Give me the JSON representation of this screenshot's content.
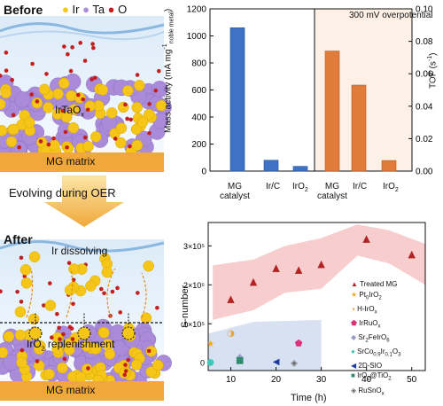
{
  "schematic": {
    "before_label": "Before",
    "after_label": "After",
    "legend": [
      {
        "symbol": "●",
        "label": "Ir",
        "color": "#f5c518"
      },
      {
        "symbol": "●",
        "label": "Ta",
        "color": "#a98bd9"
      },
      {
        "symbol": "●",
        "label": "O",
        "color": "#c41e1e"
      }
    ],
    "iritao_label": "IrTaOx",
    "mg_matrix_top": "MG matrix",
    "evolving_label": "Evolving during OER",
    "ir_dissolving_label": "Ir dissolving",
    "iro2_replenishment_label": "IrO2 replenishment",
    "mg_matrix_bottom": "MG matrix"
  },
  "bar_chart": {
    "annotation": "300 mV overpotential",
    "ylabel_left": "Mass activity (mA mg-1 noble metal)",
    "ylabel_right": "TOF (s-1)",
    "left_ticks": [
      "0",
      "200",
      "400",
      "600",
      "800",
      "1000",
      "1200"
    ],
    "right_ticks": [
      "0.00",
      "0.02",
      "0.04",
      "0.06",
      "0.08",
      "0.10"
    ],
    "xlabels_left": [
      "MG catalyst",
      "Ir/C",
      "IrO2"
    ],
    "xlabels_right": [
      "MG catalyst",
      "Ir/C",
      "IrO2"
    ]
  },
  "scatter_chart": {
    "ylabel": "S-number",
    "xlabel": "Time (h)",
    "x_ticks": [
      "10",
      "20",
      "30",
      "40",
      "50"
    ],
    "y_ticks": [
      "0",
      "1×10⁵",
      "2×10⁵",
      "3×10⁵"
    ],
    "legend": [
      {
        "label": "Treated MG",
        "symbol": "▲",
        "color": "#b22222"
      },
      {
        "label": "Pt0IrO2",
        "symbol": "★",
        "color": "#f2a81d"
      },
      {
        "label": "H-IrOx",
        "symbol": "◑",
        "color": "#e8a33c"
      },
      {
        "label": "IrRuOx",
        "symbol": "⬟",
        "color": "#e0307a"
      },
      {
        "label": "Sr2FeIrO6",
        "symbol": "◆",
        "color": "#9a9cc9"
      },
      {
        "label": "SrCo0.9Ir0.1O3",
        "symbol": "●",
        "color": "#3dc7b8"
      },
      {
        "label": "2D-SIO",
        "symbol": "◀",
        "color": "#1f3c9e"
      },
      {
        "label": "IrO2@TiO2",
        "symbol": "■",
        "color": "#2f8a6e"
      },
      {
        "label": "RuSnOx",
        "symbol": "◈",
        "color": "#666666"
      }
    ]
  },
  "chart_data": [
    {
      "type": "bar",
      "categories": [
        "MG catalyst",
        "Ir/C",
        "IrO2"
      ],
      "series": [
        {
          "name": "Mass activity",
          "values": [
            1060,
            80,
            35
          ]
        },
        {
          "name": "TOF",
          "values": [
            0.074,
            0.053,
            0.0065
          ]
        }
      ],
      "xlabel": "",
      "ylabel": "Mass activity (mA mg-1 noble metal)",
      "ylabel_right": "TOF (s-1)",
      "ylim": [
        0,
        1200
      ],
      "ylim_right": [
        0,
        0.1
      ],
      "colors": [
        "#3d72c4",
        "#e07b39"
      ],
      "grid": false
    },
    {
      "type": "scatter",
      "xlabel": "Time (h)",
      "ylabel": "S-number",
      "xlim": [
        5,
        53
      ],
      "ylim": [
        -20000,
        360000
      ],
      "series": [
        {
          "name": "Treated MG",
          "x": [
            10,
            15,
            20,
            25,
            30,
            40,
            50
          ],
          "y": [
            165000,
            210000,
            245000,
            240000,
            255000,
            320000,
            280000
          ]
        },
        {
          "name": "Pt0IrO2",
          "x": [
            5.5
          ],
          "y": [
            50000
          ]
        },
        {
          "name": "H-IrOx",
          "x": [
            10
          ],
          "y": [
            78000
          ]
        },
        {
          "name": "IrRuOx",
          "x": [
            25
          ],
          "y": [
            52000
          ]
        },
        {
          "name": "Sr2FeIrO6",
          "x": [
            12
          ],
          "y": [
            18000
          ]
        },
        {
          "name": "SrCo0.9Ir0.1O3",
          "x": [
            5.5
          ],
          "y": [
            4000
          ]
        },
        {
          "name": "2D-SIO",
          "x": [
            20
          ],
          "y": [
            5000
          ]
        },
        {
          "name": "IrO2@TiO2",
          "x": [
            12
          ],
          "y": [
            8000
          ]
        },
        {
          "name": "RuSnOx",
          "x": [
            24
          ],
          "y": [
            2000
          ]
        }
      ]
    }
  ]
}
